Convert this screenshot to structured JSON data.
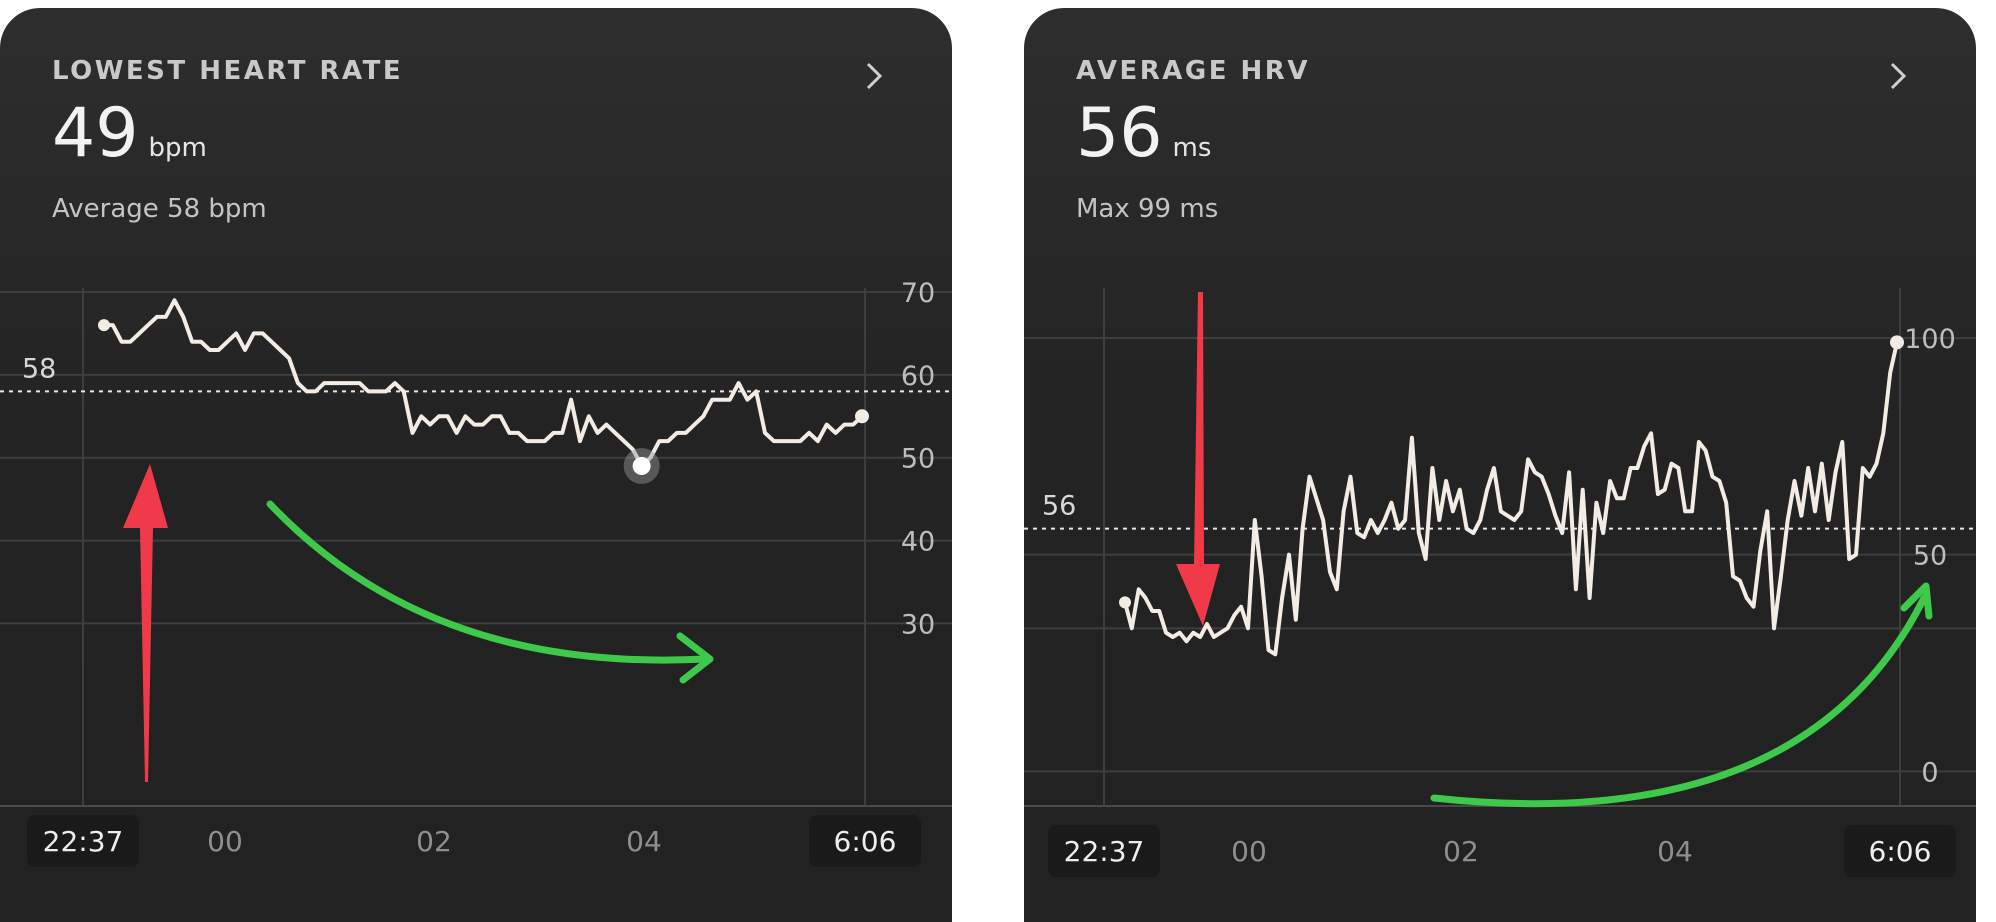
{
  "cards": [
    {
      "title": "LOWEST HEART RATE",
      "value": "49",
      "unit": "bpm",
      "subtitle": "Average 58 bpm",
      "avg_label": "58",
      "start_time": "22:37",
      "end_time": "6:06"
    },
    {
      "title": "AVERAGE HRV",
      "value": "56",
      "unit": "ms",
      "subtitle": "Max 99 ms",
      "avg_label": "56",
      "start_time": "22:37",
      "end_time": "6:06"
    }
  ],
  "colors": {
    "line": "#f3ece4",
    "red_arrow": "#f03a4a",
    "green_arrow": "#3ec94a",
    "card_bg": "#232323"
  },
  "chart_data": [
    {
      "type": "line",
      "title": "LOWEST HEART RATE",
      "ylabel": "",
      "xlabel": "",
      "x_range": [
        "22:37",
        "6:06"
      ],
      "x_ticks": [
        "00",
        "02",
        "04"
      ],
      "y_ticks": [
        30,
        40,
        50,
        60,
        70
      ],
      "ylim": [
        28,
        77
      ],
      "average_line": 58,
      "series": [
        {
          "values": [
            66,
            66,
            64,
            64,
            65,
            66,
            67,
            67,
            69,
            67,
            64,
            64,
            63,
            63,
            64,
            65,
            63,
            65,
            65,
            64,
            63,
            62,
            59,
            58,
            58,
            59,
            59,
            59,
            59,
            59,
            58,
            58,
            58,
            59,
            58,
            53,
            55,
            54,
            55,
            55,
            53,
            55,
            54,
            54,
            55,
            55,
            53,
            53,
            52,
            52,
            52,
            53,
            53,
            57,
            52,
            55,
            53,
            54,
            53,
            52,
            51,
            49,
            50,
            52,
            52,
            53,
            53,
            54,
            55,
            57,
            57,
            57,
            59,
            57,
            58,
            53,
            52,
            52,
            52,
            52,
            53,
            52,
            54,
            53,
            54,
            54,
            55
          ]
        }
      ],
      "markers": {
        "min": 49,
        "last": 55
      }
    },
    {
      "type": "line",
      "title": "AVERAGE HRV",
      "ylabel": "",
      "xlabel": "",
      "x_range": [
        "22:37",
        "6:06"
      ],
      "x_ticks": [
        "00",
        "02",
        "04"
      ],
      "y_ticks": [
        0,
        50,
        100
      ],
      "ylim": [
        -5,
        130
      ],
      "average_line": 56,
      "series": [
        {
          "values": [
            39,
            33,
            42,
            40,
            37,
            37,
            32,
            31,
            32,
            30,
            32,
            31,
            34,
            31,
            32,
            33,
            36,
            38,
            33,
            58,
            45,
            28,
            27,
            40,
            50,
            35,
            56,
            68,
            63,
            58,
            46,
            42,
            60,
            68,
            55,
            54,
            58,
            55,
            58,
            62,
            56,
            58,
            77,
            55,
            49,
            70,
            58,
            67,
            60,
            65,
            56,
            55,
            58,
            65,
            70,
            60,
            59,
            58,
            60,
            72,
            69,
            68,
            64,
            59,
            55,
            69,
            42,
            65,
            40,
            62,
            55,
            67,
            63,
            63,
            70,
            70,
            75,
            78,
            64,
            65,
            71,
            70,
            60,
            60,
            76,
            74,
            68,
            67,
            62,
            45,
            44,
            40,
            38,
            51,
            60,
            33,
            45,
            58,
            67,
            59,
            70,
            60,
            71,
            58,
            69,
            76,
            49,
            50,
            70,
            68,
            71,
            78,
            92,
            99
          ]
        }
      ],
      "markers": {
        "first": 39,
        "last": 99
      }
    }
  ]
}
